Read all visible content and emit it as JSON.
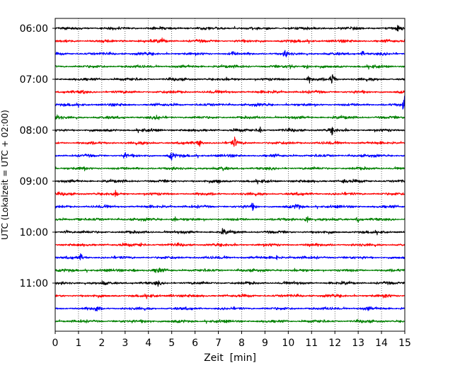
{
  "chart_data": {
    "type": "line",
    "title": "",
    "xlabel": "Zeit  [min]",
    "ylabel": "UTC (Lokalzeit = UTC + 02:00)",
    "xlim": [
      0,
      15
    ],
    "x_ticks": [
      0,
      1,
      2,
      3,
      4,
      5,
      6,
      7,
      8,
      9,
      10,
      11,
      12,
      13,
      14,
      15
    ],
    "x_tick_labels": [
      "0",
      "1",
      "2",
      "3",
      "4",
      "5",
      "6",
      "7",
      "8",
      "9",
      "10",
      "11",
      "12",
      "13",
      "14",
      "15"
    ],
    "y_tick_labels": [
      "06:00",
      "07:00",
      "08:00",
      "09:00",
      "10:00",
      "11:00"
    ],
    "y_tick_rows": [
      0,
      4,
      8,
      12,
      16,
      20
    ],
    "grid": "vertical dotted",
    "trace_minutes": 15,
    "trace_colors": [
      "#000000",
      "#ff0000",
      "#0000ff",
      "#008000"
    ],
    "series": [
      {
        "start": "06:00",
        "color": "#000000",
        "events": [
          [
            14.7,
            0.8
          ]
        ]
      },
      {
        "start": "06:15",
        "color": "#ff0000",
        "events": [
          [
            4.6,
            0.5
          ]
        ]
      },
      {
        "start": "06:30",
        "color": "#0000ff",
        "events": [
          [
            7.6,
            0.6
          ],
          [
            9.9,
            0.8
          ],
          [
            13.2,
            0.6
          ]
        ]
      },
      {
        "start": "06:45",
        "color": "#008000",
        "events": [
          [
            10.1,
            0.7
          ],
          [
            10.8,
            0.6
          ]
        ]
      },
      {
        "start": "07:00",
        "color": "#000000",
        "events": [
          [
            11.9,
            1.6
          ],
          [
            10.9,
            0.7
          ]
        ]
      },
      {
        "start": "07:15",
        "color": "#ff0000",
        "events": [
          [
            1.2,
            0.4
          ]
        ]
      },
      {
        "start": "07:30",
        "color": "#0000ff",
        "events": [
          [
            15.0,
            2.0
          ]
        ]
      },
      {
        "start": "07:45",
        "color": "#008000",
        "events": [
          [
            0.1,
            0.6
          ],
          [
            4.4,
            0.5
          ]
        ]
      },
      {
        "start": "08:00",
        "color": "#000000",
        "events": [
          [
            8.8,
            0.8
          ],
          [
            11.9,
            0.8
          ]
        ]
      },
      {
        "start": "08:15",
        "color": "#ff0000",
        "events": [
          [
            6.2,
            0.8
          ],
          [
            7.7,
            1.2
          ]
        ]
      },
      {
        "start": "08:30",
        "color": "#0000ff",
        "events": [
          [
            3.0,
            0.6
          ],
          [
            5.0,
            1.0
          ]
        ]
      },
      {
        "start": "08:45",
        "color": "#008000",
        "events": [
          [
            1.2,
            0.5
          ],
          [
            7.2,
            0.4
          ]
        ]
      },
      {
        "start": "09:00",
        "color": "#000000",
        "events": [
          [
            7.0,
            0.6
          ],
          [
            12.4,
            0.6
          ]
        ]
      },
      {
        "start": "09:15",
        "color": "#ff0000",
        "events": [
          [
            2.6,
            0.6
          ]
        ]
      },
      {
        "start": "09:30",
        "color": "#0000ff",
        "events": [
          [
            8.5,
            0.9
          ],
          [
            10.4,
            0.6
          ]
        ]
      },
      {
        "start": "09:45",
        "color": "#008000",
        "events": [
          [
            1.0,
            0.4
          ],
          [
            5.1,
            0.6
          ],
          [
            10.8,
            1.0
          ],
          [
            13.0,
            0.6
          ]
        ]
      },
      {
        "start": "10:00",
        "color": "#000000",
        "events": [
          [
            0.5,
            0.5
          ],
          [
            7.2,
            0.6
          ]
        ]
      },
      {
        "start": "10:15",
        "color": "#ff0000",
        "events": [
          [
            3.7,
            0.4
          ],
          [
            10.9,
            0.5
          ]
        ]
      },
      {
        "start": "10:30",
        "color": "#0000ff",
        "events": [
          [
            1.1,
            0.7
          ],
          [
            9.5,
            0.5
          ]
        ]
      },
      {
        "start": "10:45",
        "color": "#008000",
        "events": [
          [
            4.4,
            0.9
          ],
          [
            3.4,
            0.5
          ]
        ]
      },
      {
        "start": "11:00",
        "color": "#000000",
        "events": [
          [
            2.1,
            0.5
          ],
          [
            4.4,
            0.5
          ]
        ]
      },
      {
        "start": "11:15",
        "color": "#ff0000",
        "events": [
          [
            5.0,
            0.4
          ],
          [
            14.2,
            0.4
          ]
        ]
      },
      {
        "start": "11:30",
        "color": "#0000ff",
        "events": [
          [
            1.8,
            0.7
          ],
          [
            13.4,
            0.4
          ]
        ]
      },
      {
        "start": "11:45",
        "color": "#008000",
        "events": [
          [
            3.8,
            0.4
          ],
          [
            4.1,
            0.4
          ]
        ]
      }
    ]
  }
}
